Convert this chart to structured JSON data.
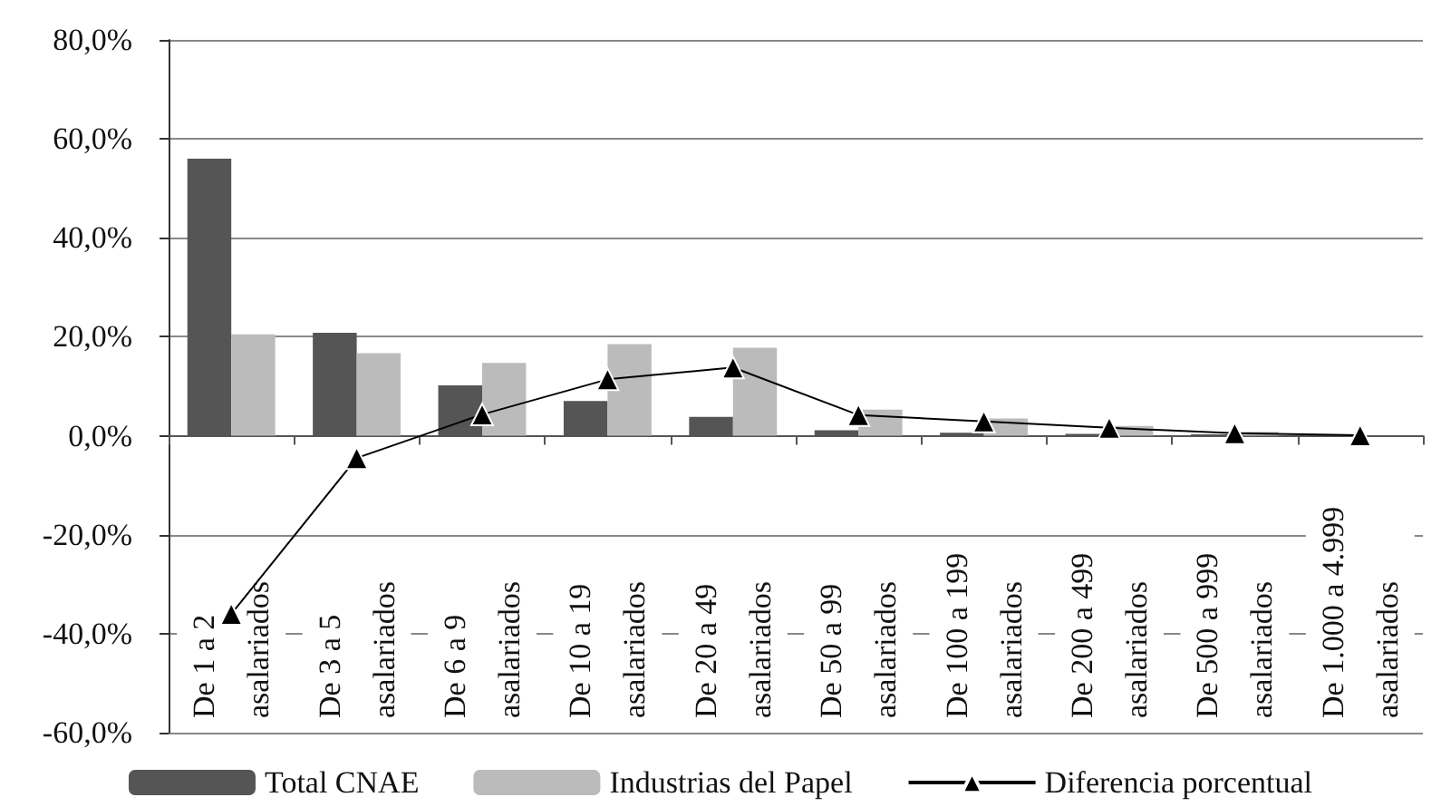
{
  "chart_data": {
    "type": "bar",
    "categories": [
      "De 1 a 2\nasalariados",
      "De 3 a 5\nasalariados",
      "De 6 a 9\nasalariados",
      "De 10 a 19\nasalariados",
      "De 20 a 49\nasalariados",
      "De 50 a 99\nasalariados",
      "De 100 a 199\nasalariados",
      "De 200 a 499\nasalariados",
      "De 500 a 999\nasalariados",
      "De 1.000 a 4.999\nasalariados"
    ],
    "series": [
      {
        "name": "Total CNAE",
        "color": "#555555",
        "values": [
          56,
          20.8,
          10.2,
          7.0,
          3.8,
          1.1,
          0.6,
          0.4,
          0.3,
          0.2
        ]
      },
      {
        "name": "Industrias del Papel",
        "color": "#bbbbbc",
        "values": [
          20.5,
          16.7,
          14.7,
          18.5,
          17.8,
          5.3,
          3.5,
          2.0,
          0.8,
          null
        ]
      },
      {
        "name": "Diferencia porcentual",
        "type": "line",
        "color": "#000000",
        "marker": "triangle",
        "values": [
          -36,
          -4.5,
          4.3,
          11.4,
          13.8,
          4.2,
          2.9,
          1.6,
          0.5,
          0.1
        ]
      }
    ],
    "ylim": [
      -60,
      80
    ],
    "yticks": [
      {
        "value": -60,
        "label": "-60,0%"
      },
      {
        "value": -40,
        "label": "-40,0%"
      },
      {
        "value": -20,
        "label": "-20,0%"
      },
      {
        "value": 0,
        "label": "0,0%"
      },
      {
        "value": 20,
        "label": "20,0%"
      },
      {
        "value": 40,
        "label": "40,0%"
      },
      {
        "value": 60,
        "label": "60,0%"
      },
      {
        "value": 80,
        "label": "80,0%"
      }
    ],
    "grid": "y",
    "legend": "bottom"
  }
}
